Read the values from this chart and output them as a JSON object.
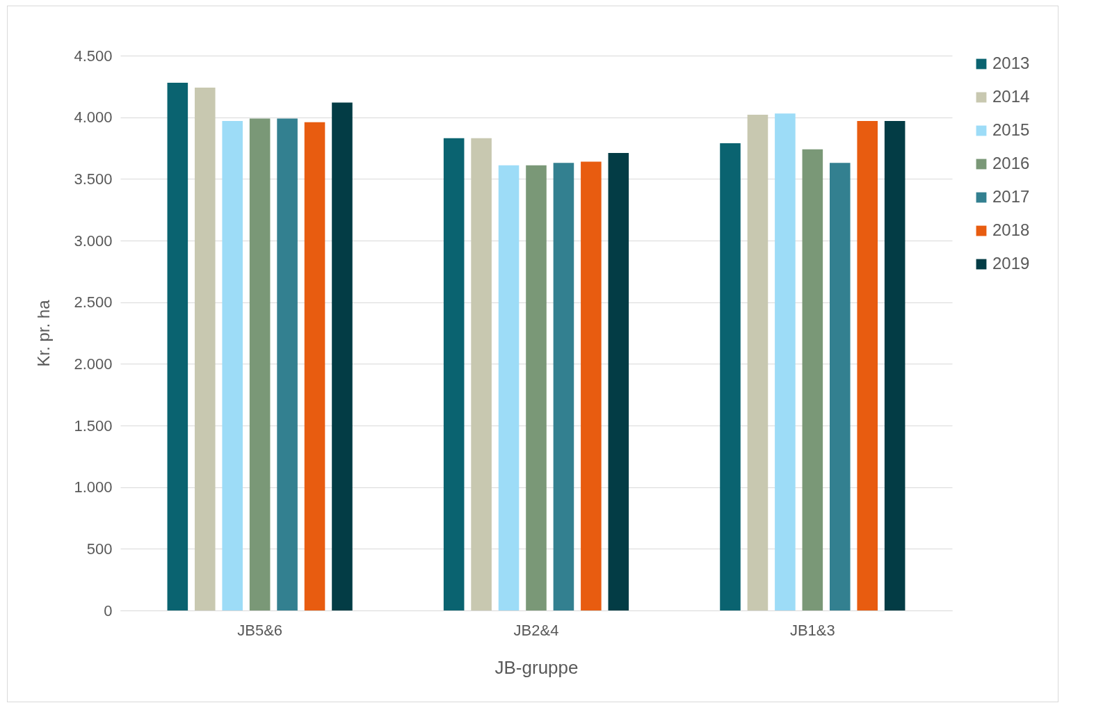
{
  "chart_data": {
    "type": "bar",
    "xlabel": "JB-gruppe",
    "ylabel": "Kr. pr. ha",
    "categories": [
      "JB5&6",
      "JB2&4",
      "JB1&3"
    ],
    "series": [
      {
        "name": "2013",
        "color": "#0a6370",
        "values": [
          4280,
          3830,
          3790
        ]
      },
      {
        "name": "2014",
        "color": "#c8c8b0",
        "values": [
          4240,
          3830,
          4020
        ]
      },
      {
        "name": "2015",
        "color": "#9ddcf7",
        "values": [
          3970,
          3610,
          4030
        ]
      },
      {
        "name": "2016",
        "color": "#7a9877",
        "values": [
          3990,
          3610,
          3740
        ]
      },
      {
        "name": "2017",
        "color": "#338090",
        "values": [
          3990,
          3630,
          3630
        ]
      },
      {
        "name": "2018",
        "color": "#e85c10",
        "values": [
          3960,
          3640,
          3970
        ]
      },
      {
        "name": "2019",
        "color": "#033c45",
        "values": [
          4120,
          3710,
          3970
        ]
      }
    ],
    "ylim": [
      0,
      4500
    ],
    "yticks": [
      0,
      {
        "value": 500,
        "label": "500"
      },
      {
        "value": 1000,
        "label": "1.000"
      },
      {
        "value": 1500,
        "label": "1.500"
      },
      {
        "value": 2000,
        "label": "2.000"
      },
      {
        "value": 2500,
        "label": "2.500"
      },
      {
        "value": 3000,
        "label": "3.000"
      },
      {
        "value": 3500,
        "label": "3.500"
      },
      {
        "value": 4000,
        "label": "4.000"
      },
      {
        "value": 4500,
        "label": "4.500"
      }
    ],
    "grid": "y",
    "legend": "right"
  }
}
